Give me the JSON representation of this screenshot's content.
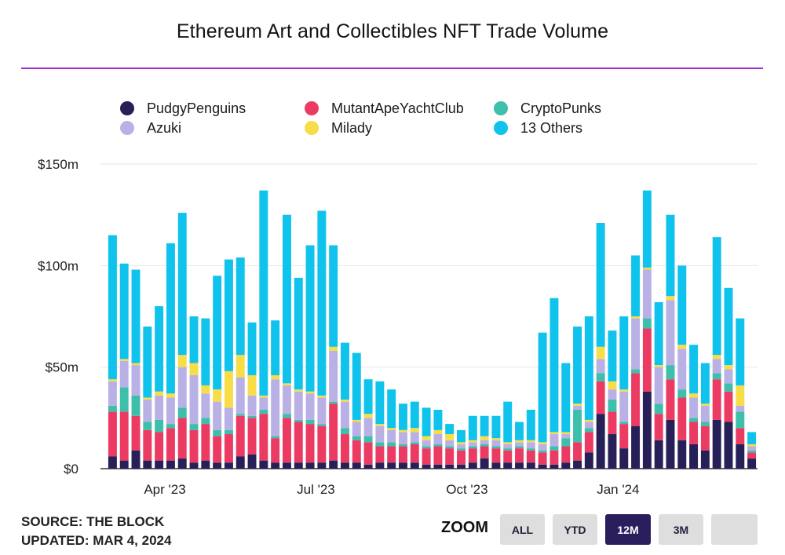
{
  "title": "Ethereum Art and Collectibles NFT Trade Volume",
  "colors": {
    "accent_rule": "#a52bd8",
    "grid": "#e6e6e6",
    "axis_text": "#222222",
    "button_bg": "#dedede",
    "button_active_bg": "#2a1f5c",
    "button_active_text": "#ffffff"
  },
  "footer": {
    "source": "SOURCE: THE BLOCK",
    "updated": "UPDATED: MAR 4, 2024"
  },
  "zoom": {
    "label": "ZOOM",
    "buttons": [
      "ALL",
      "YTD",
      "12M",
      "3M",
      ""
    ],
    "active": "12M"
  },
  "chart_data": {
    "type": "bar",
    "stacked": true,
    "title": "Ethereum Art and Collectibles NFT Trade Volume",
    "ylim": [
      0,
      150
    ],
    "y_ticks": [
      0,
      50,
      100,
      150
    ],
    "y_tick_labels": [
      "$0",
      "$50m",
      "$100m",
      "$150m"
    ],
    "x_tick_labels": [
      {
        "label": "Apr '23",
        "at_index": 4.5
      },
      {
        "label": "Jul '23",
        "at_index": 17.5
      },
      {
        "label": "Oct '23",
        "at_index": 30.5
      },
      {
        "label": "Jan '24",
        "at_index": 43.5
      }
    ],
    "grid": true,
    "legend_position": "top",
    "unit": "USD millions, weekly",
    "series": [
      {
        "name": "PudgyPenguins",
        "color": "#272058",
        "values": [
          6,
          4,
          9,
          4,
          4,
          4,
          5,
          3,
          4,
          3,
          3,
          6,
          7,
          4,
          3,
          3,
          3,
          3,
          3,
          4,
          3,
          3,
          2,
          3,
          3,
          3,
          3,
          2,
          2,
          2,
          2,
          3,
          5,
          3,
          3,
          3,
          3,
          2,
          2,
          3,
          4,
          8,
          27,
          17,
          10,
          21,
          38,
          14,
          24,
          14,
          12,
          9,
          24,
          23,
          12,
          5
        ]
      },
      {
        "name": "MutantApeYachtClub",
        "color": "#eb3b63",
        "values": [
          22,
          24,
          17,
          15,
          14,
          16,
          20,
          16,
          18,
          13,
          14,
          20,
          18,
          23,
          12,
          22,
          20,
          19,
          18,
          28,
          14,
          11,
          11,
          8,
          8,
          8,
          9,
          8,
          9,
          8,
          7,
          7,
          6,
          7,
          6,
          7,
          6,
          6,
          7,
          8,
          9,
          10,
          16,
          11,
          12,
          26,
          31,
          13,
          20,
          21,
          11,
          12,
          20,
          15,
          8,
          3
        ]
      },
      {
        "name": "CryptoPunks",
        "color": "#3dbfac",
        "values": [
          3,
          12,
          10,
          4,
          6,
          2,
          5,
          3,
          3,
          3,
          2,
          1,
          1,
          2,
          1,
          2,
          1,
          2,
          1,
          1,
          3,
          2,
          3,
          2,
          2,
          1,
          1,
          1,
          1,
          1,
          1,
          1,
          1,
          1,
          1,
          1,
          1,
          1,
          2,
          4,
          16,
          2,
          4,
          6,
          1,
          2,
          5,
          5,
          7,
          4,
          2,
          2,
          3,
          4,
          8,
          1
        ]
      },
      {
        "name": "Azuki",
        "color": "#b9b1e6",
        "values": [
          12,
          13,
          15,
          11,
          12,
          13,
          20,
          24,
          12,
          14,
          11,
          18,
          10,
          6,
          28,
          14,
          14,
          13,
          13,
          25,
          13,
          7,
          9,
          8,
          6,
          6,
          5,
          3,
          5,
          3,
          2,
          2,
          2,
          3,
          2,
          2,
          3,
          3,
          6,
          2,
          2,
          3,
          7,
          5,
          15,
          25,
          24,
          18,
          32,
          20,
          10,
          8,
          7,
          7,
          3,
          2
        ]
      },
      {
        "name": "Milady",
        "color": "#f7dd48",
        "values": [
          1,
          1,
          1,
          1,
          2,
          2,
          6,
          6,
          4,
          6,
          18,
          11,
          10,
          1,
          2,
          1,
          1,
          1,
          1,
          2,
          1,
          1,
          2,
          1,
          1,
          1,
          2,
          2,
          2,
          3,
          1,
          1,
          2,
          1,
          1,
          1,
          1,
          1,
          1,
          1,
          1,
          1,
          6,
          4,
          1,
          1,
          1,
          1,
          2,
          2,
          2,
          1,
          2,
          2,
          10,
          1
        ]
      },
      {
        "name": "13 Others",
        "color": "#0fc3ec",
        "values": [
          71,
          47,
          46,
          35,
          42,
          74,
          70,
          23,
          33,
          56,
          55,
          48,
          26,
          101,
          27,
          83,
          55,
          72,
          91,
          50,
          28,
          33,
          17,
          21,
          19,
          13,
          13,
          14,
          10,
          5,
          6,
          12,
          10,
          11,
          20,
          9,
          15,
          54,
          66,
          34,
          38,
          51,
          61,
          25,
          36,
          30,
          38,
          31,
          40,
          39,
          24,
          20,
          58,
          38,
          33,
          6
        ]
      }
    ]
  }
}
